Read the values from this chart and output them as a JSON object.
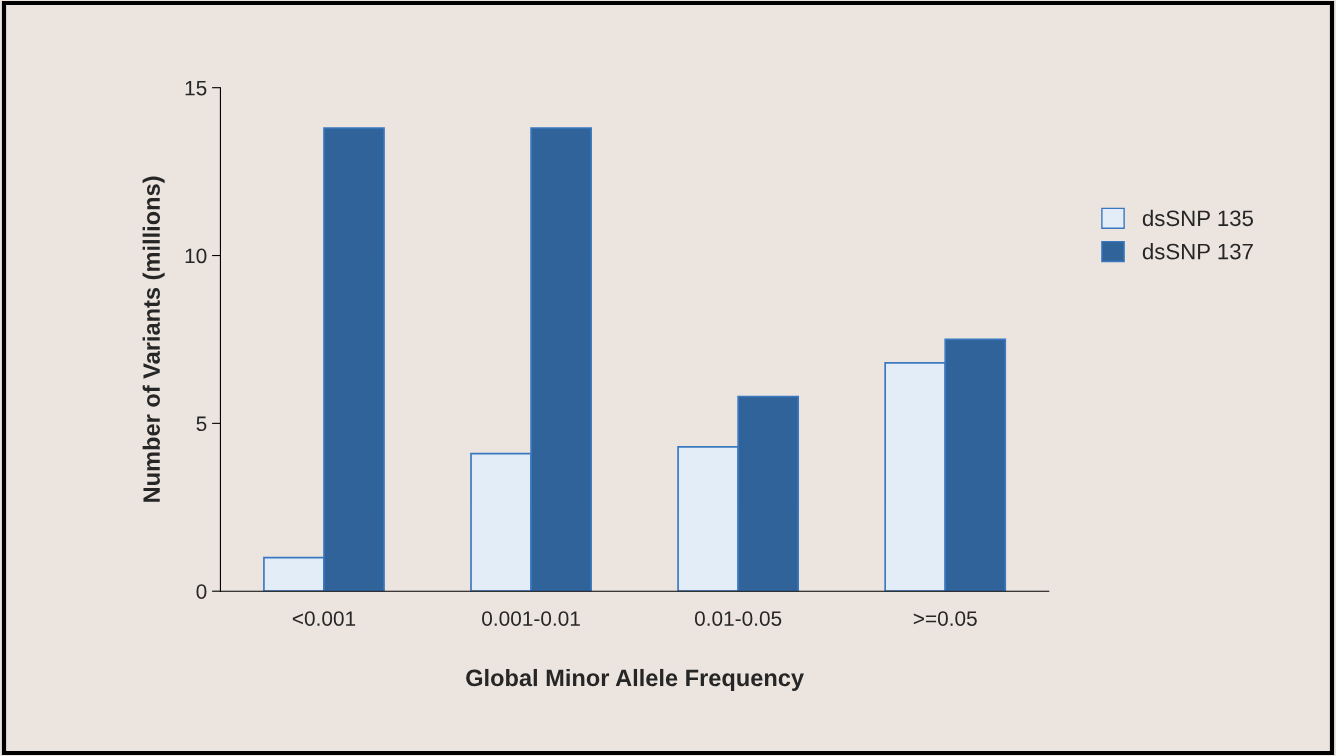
{
  "chart_data": {
    "type": "bar",
    "xlabel": "Global Minor Allele Frequency",
    "ylabel": "Number of Variants (millions)",
    "categories": [
      "<0.001",
      "0.001-0.01",
      "0.01-0.05",
      ">=0.05"
    ],
    "series": [
      {
        "name": "dsSNP 135",
        "color": "#e3edf7",
        "values": [
          1.0,
          4.1,
          4.3,
          6.8
        ]
      },
      {
        "name": "dsSNP 137",
        "color": "#2f6399",
        "values": [
          13.8,
          13.8,
          5.8,
          7.5
        ]
      }
    ],
    "ylim": [
      0,
      15
    ],
    "yticks": [
      0,
      5,
      10,
      15
    ],
    "grid": false,
    "legend": "right"
  }
}
